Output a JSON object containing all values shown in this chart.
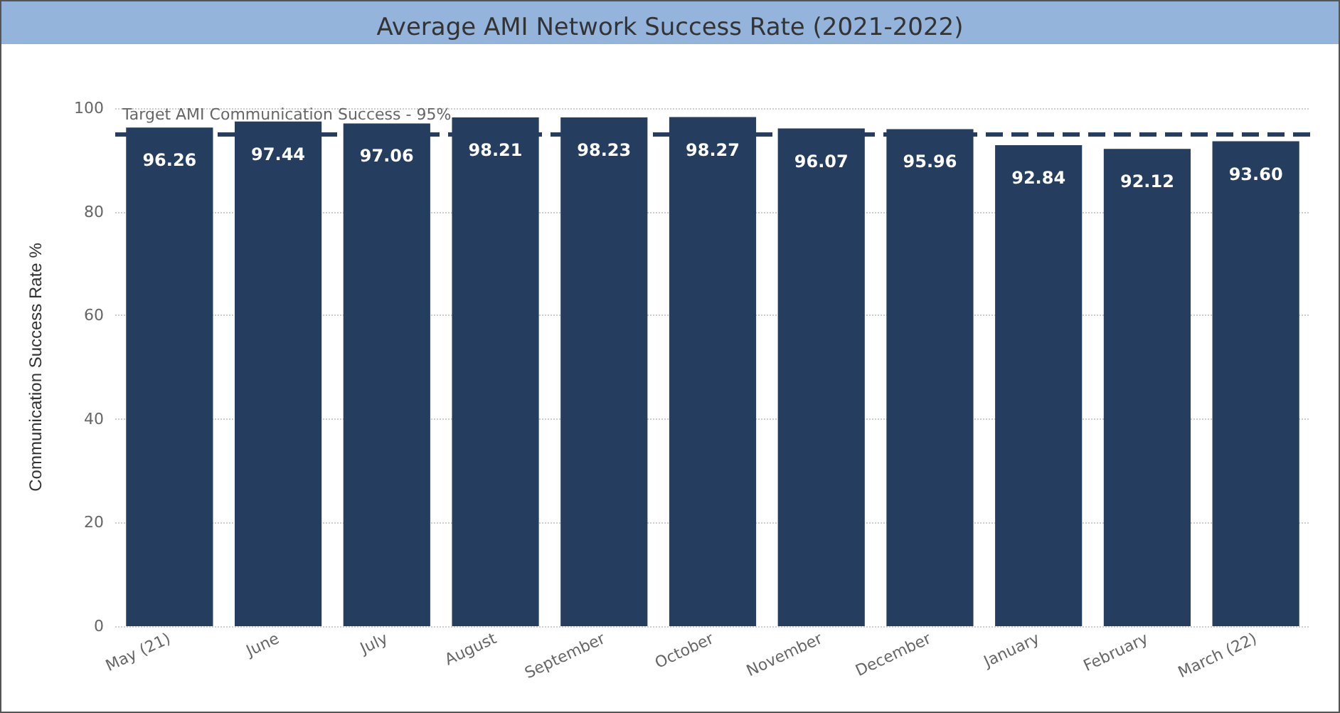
{
  "chart_data": {
    "type": "bar",
    "title": "Average AMI Network Success Rate (2021-2022)",
    "ylabel": "Communication Success Rate %",
    "categories": [
      "May (21)",
      "June",
      "July",
      "August",
      "September",
      "October",
      "November",
      "December",
      "January",
      "February",
      "March (22)"
    ],
    "values": [
      96.26,
      97.44,
      97.06,
      98.21,
      98.23,
      98.27,
      96.07,
      95.96,
      92.84,
      92.12,
      93.6
    ],
    "value_labels": [
      "96.26",
      "97.44",
      "97.06",
      "98.21",
      "98.23",
      "98.27",
      "96.07",
      "95.96",
      "92.84",
      "92.12",
      "93.60"
    ],
    "color": "#253d5e",
    "ylim": [
      0,
      100
    ],
    "yticks": [
      0,
      20,
      40,
      60,
      80,
      100
    ],
    "grid": "y",
    "ref_lines": [
      {
        "axis": "y",
        "value": 95,
        "label": "Target AMI Communication Success - 95%",
        "color": "#253d5e",
        "line_style": "dashed"
      }
    ]
  }
}
